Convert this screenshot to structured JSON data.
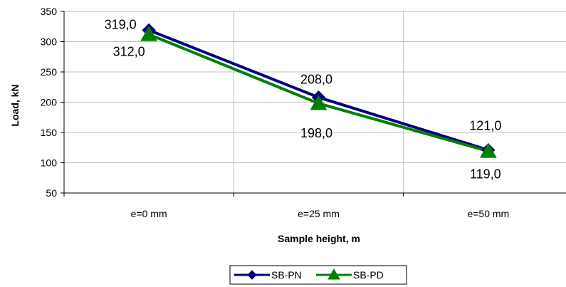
{
  "chart_data": {
    "type": "line",
    "categories": [
      "e=0 mm",
      "e=25 mm",
      "e=50 mm"
    ],
    "series": [
      {
        "name": "SB-PN",
        "values": [
          319.0,
          208.0,
          121.0
        ],
        "labels": [
          "319,0",
          "208,0",
          "121,0"
        ],
        "color": "#000080",
        "marker": "diamond"
      },
      {
        "name": "SB-PD",
        "values": [
          312.0,
          198.0,
          119.0
        ],
        "labels": [
          "312,0",
          "198,0",
          "119,0"
        ],
        "color": "#008000",
        "marker": "triangle"
      }
    ],
    "xlabel": "Sample height, m",
    "ylabel": "Load, kN",
    "ylim": [
      50,
      350
    ],
    "yticks": [
      50,
      100,
      150,
      200,
      250,
      300,
      350
    ],
    "grid": true,
    "legend": "bottom"
  }
}
